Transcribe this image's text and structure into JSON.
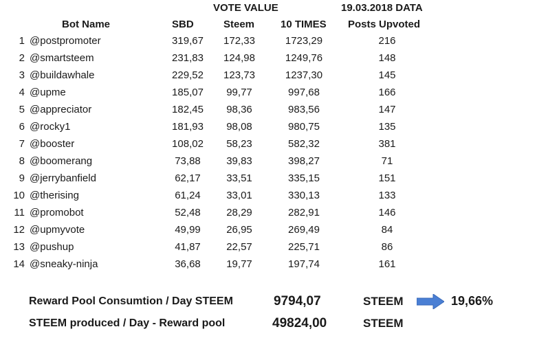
{
  "headers": {
    "vote_value": "VOTE VALUE",
    "data_date": "19.03.2018 DATA",
    "bot_name": "Bot Name",
    "sbd": "SBD",
    "steem": "Steem",
    "ten_times": "10 TIMES",
    "posts_upvoted": "Posts Upvoted"
  },
  "rows": [
    {
      "n": "1",
      "name": "@postpromoter",
      "sbd": "319,67",
      "steem": "172,33",
      "ten": "1723,29",
      "posts": "216"
    },
    {
      "n": "2",
      "name": "@smartsteem",
      "sbd": "231,83",
      "steem": "124,98",
      "ten": "1249,76",
      "posts": "148"
    },
    {
      "n": "3",
      "name": "@buildawhale",
      "sbd": "229,52",
      "steem": "123,73",
      "ten": "1237,30",
      "posts": "145"
    },
    {
      "n": "4",
      "name": "@upme",
      "sbd": "185,07",
      "steem": "99,77",
      "ten": "997,68",
      "posts": "166"
    },
    {
      "n": "5",
      "name": "@appreciator",
      "sbd": "182,45",
      "steem": "98,36",
      "ten": "983,56",
      "posts": "147"
    },
    {
      "n": "6",
      "name": "@rocky1",
      "sbd": "181,93",
      "steem": "98,08",
      "ten": "980,75",
      "posts": "135"
    },
    {
      "n": "7",
      "name": "@booster",
      "sbd": "108,02",
      "steem": "58,23",
      "ten": "582,32",
      "posts": "381"
    },
    {
      "n": "8",
      "name": "@boomerang",
      "sbd": "73,88",
      "steem": "39,83",
      "ten": "398,27",
      "posts": "71"
    },
    {
      "n": "9",
      "name": "@jerrybanfield",
      "sbd": "62,17",
      "steem": "33,51",
      "ten": "335,15",
      "posts": "151"
    },
    {
      "n": "10",
      "name": "@therising",
      "sbd": "61,24",
      "steem": "33,01",
      "ten": "330,13",
      "posts": "133"
    },
    {
      "n": "11",
      "name": "@promobot",
      "sbd": "52,48",
      "steem": "28,29",
      "ten": "282,91",
      "posts": "146"
    },
    {
      "n": "12",
      "name": "@upmyvote",
      "sbd": "49,99",
      "steem": "26,95",
      "ten": "269,49",
      "posts": "84"
    },
    {
      "n": "13",
      "name": "@pushup",
      "sbd": "41,87",
      "steem": "22,57",
      "ten": "225,71",
      "posts": "86"
    },
    {
      "n": "14",
      "name": "@sneaky-ninja",
      "sbd": "36,68",
      "steem": "19,77",
      "ten": "197,74",
      "posts": "161"
    }
  ],
  "summary": {
    "line1_label": "Reward Pool Consumtion / Day STEEM",
    "line1_value": "9794,07",
    "line1_unit": "STEEM",
    "percent": "19,66%",
    "line2_label": "STEEM produced / Day - Reward pool",
    "line2_value": "49824,00",
    "line2_unit": "STEEM"
  },
  "colors": {
    "arrow": "#4a7fd4"
  },
  "icons": {
    "arrow": "right-arrow-icon"
  }
}
